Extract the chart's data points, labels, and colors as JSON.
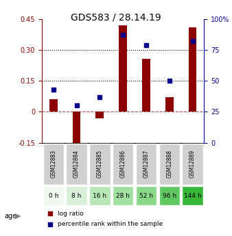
{
  "title": "GDS583 / 28.14.19",
  "samples": [
    "GSM12883",
    "GSM12884",
    "GSM12885",
    "GSM12886",
    "GSM12887",
    "GSM12888",
    "GSM12889"
  ],
  "age_labels": [
    "0 h",
    "8 h",
    "16 h",
    "28 h",
    "52 h",
    "96 h",
    "144 h"
  ],
  "log_ratio": [
    0.06,
    -0.2,
    -0.03,
    0.42,
    0.255,
    0.07,
    0.41
  ],
  "percentile_rank": [
    0.43,
    0.3,
    0.37,
    0.87,
    0.79,
    0.5,
    0.82
  ],
  "bar_color": "#8B0000",
  "dot_color": "#00008B",
  "ylim_left": [
    -0.15,
    0.45
  ],
  "ylim_right": [
    0,
    100
  ],
  "yticks_left": [
    -0.15,
    0,
    0.15,
    0.3,
    0.45
  ],
  "yticks_right": [
    0,
    25,
    50,
    75,
    100
  ],
  "ytick_labels_left": [
    "-0.15",
    "0",
    "0.15",
    "0.30",
    "0.45"
  ],
  "ytick_labels_right": [
    "0",
    "25",
    "50",
    "75",
    "100%"
  ],
  "hlines": [
    0.15,
    0.3
  ],
  "age_colors": [
    "#f0fff0",
    "#d0f0d0",
    "#b0e8b0",
    "#90e090",
    "#70d870",
    "#50d050",
    "#30c830"
  ],
  "age_bg_colors": [
    "#e8e8e8",
    "#d0efd0",
    "#b8e8b8",
    "#a0e0a0",
    "#88d888",
    "#70d070",
    "#58c858"
  ],
  "legend_log_ratio": "log ratio",
  "legend_percentile": "percentile rank within the sample"
}
